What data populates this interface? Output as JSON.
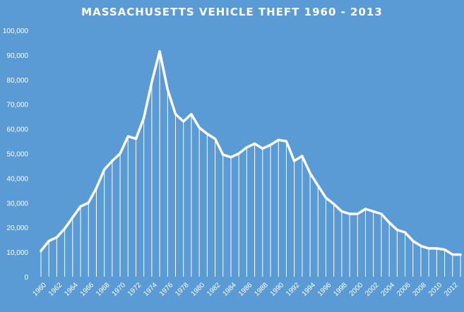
{
  "chart_data": {
    "type": "area",
    "title": "MASSACHUSETTS VEHICLE THEFT 1960 - 2013",
    "xlabel": "",
    "ylabel": "",
    "ylim": [
      0,
      100000
    ],
    "yticks": [
      "0",
      "10,000",
      "20,000",
      "30,000",
      "40,000",
      "50,000",
      "60,000",
      "70,000",
      "80,000",
      "90,000",
      "100,000"
    ],
    "xticks": [
      "1960",
      "1962",
      "1964",
      "1966",
      "1968",
      "1970",
      "1972",
      "1974",
      "1976",
      "1978",
      "1980",
      "1982",
      "1984",
      "1986",
      "1988",
      "1990",
      "1992",
      "1994",
      "1996",
      "1998",
      "2000",
      "2002",
      "2004",
      "2006",
      "2008",
      "2010",
      "2012"
    ],
    "grid": false,
    "colors": {
      "background": "#5b9bd5",
      "line": "#ffffff",
      "drop_lines": "#ffffff"
    },
    "series": [
      {
        "x": [
          1960,
          1961,
          1962,
          1963,
          1964,
          1965,
          1966,
          1967,
          1968,
          1969,
          1970,
          1971,
          1972,
          1973,
          1974,
          1975,
          1976,
          1977,
          1978,
          1979,
          1980,
          1981,
          1982,
          1983,
          1984,
          1985,
          1986,
          1987,
          1988,
          1989,
          1990,
          1991,
          1992,
          1993,
          1994,
          1995,
          1996,
          1997,
          1998,
          1999,
          2000,
          2001,
          2002,
          2003,
          2004,
          2005,
          2006,
          2007,
          2008,
          2009,
          2010,
          2011,
          2012,
          2013
        ],
        "values": [
          10500,
          14500,
          16000,
          19500,
          24000,
          28500,
          30000,
          36000,
          43500,
          47000,
          50000,
          57000,
          56000,
          64500,
          79000,
          91500,
          76000,
          66000,
          63000,
          66000,
          60500,
          58000,
          56000,
          49500,
          48500,
          50000,
          52500,
          54000,
          52000,
          53500,
          55500,
          55000,
          47000,
          49000,
          42000,
          37000,
          32000,
          29500,
          26500,
          25500,
          25500,
          27500,
          26500,
          25500,
          22000,
          19000,
          18000,
          14500,
          12500,
          11500,
          11500,
          11000,
          9000,
          9000
        ]
      }
    ]
  }
}
